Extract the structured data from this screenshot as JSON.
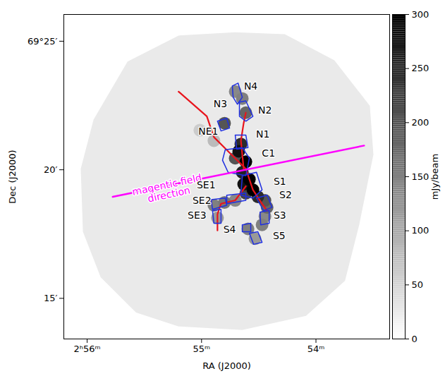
{
  "chart_data": {
    "type": "image",
    "xlabel": "RA (J2000)",
    "ylabel": "Dec (J2000)",
    "xlim": [
      56.204,
      53.356
    ],
    "ylim": [
      13.42,
      26.04
    ],
    "xticks": [
      {
        "value": 56,
        "label": "2ʰ56ᵐ"
      },
      {
        "value": 55,
        "label": "55ᵐ"
      },
      {
        "value": 54,
        "label": "54ᵐ"
      }
    ],
    "yticks": [
      {
        "value": 15,
        "label": "15′"
      },
      {
        "value": 20,
        "label": "20′"
      },
      {
        "value": 25,
        "label": "69°25′"
      }
    ],
    "colorbar": {
      "label": "mJy/beam",
      "lim": [
        0,
        300
      ],
      "ticks": [
        0,
        50,
        100,
        150,
        200,
        250,
        300
      ]
    },
    "coverage": {
      "value": 25,
      "points": [
        [
          55.647,
          24.21
        ],
        [
          55.201,
          25.22
        ],
        [
          54.706,
          25.35
        ],
        [
          54.272,
          25.27
        ],
        [
          53.839,
          24.26
        ],
        [
          53.529,
          22.49
        ],
        [
          53.498,
          20.59
        ],
        [
          53.622,
          17.86
        ],
        [
          53.746,
          15.68
        ],
        [
          54.087,
          14.32
        ],
        [
          54.644,
          13.77
        ],
        [
          55.201,
          13.91
        ],
        [
          55.573,
          14.45
        ],
        [
          55.882,
          15.82
        ],
        [
          56.037,
          17.59
        ],
        [
          56.056,
          20.04
        ],
        [
          55.944,
          21.95
        ]
      ]
    },
    "emission": {
      "points": [
        [
          55.015,
          21.54
        ],
        [
          54.892,
          21.13
        ],
        [
          54.533,
          17.32
        ],
        [
          54.861,
          18.13
        ],
        [
          54.706,
          23.04
        ],
        [
          54.446,
          18.19
        ],
        [
          54.706,
          18.81
        ],
        [
          54.644,
          22.77
        ],
        [
          54.471,
          17.86
        ],
        [
          54.594,
          17.7
        ],
        [
          54.892,
          18.62
        ],
        [
          54.799,
          18.73
        ],
        [
          54.613,
          22.22
        ],
        [
          54.427,
          18.54
        ],
        [
          54.706,
          20.45
        ],
        [
          54.799,
          21.81
        ],
        [
          54.446,
          18.81
        ],
        [
          54.613,
          19.09
        ],
        [
          54.508,
          18.95
        ],
        [
          54.656,
          21.0
        ],
        [
          54.644,
          19.9
        ],
        [
          54.675,
          20.72
        ],
        [
          54.632,
          19.44
        ],
        [
          54.613,
          20.31
        ],
        [
          54.582,
          19.63
        ],
        [
          54.551,
          19.22
        ]
      ],
      "values": [
        60,
        80,
        120,
        120,
        140,
        140,
        140,
        150,
        150,
        150,
        150,
        160,
        180,
        180,
        200,
        200,
        200,
        220,
        250,
        250,
        260,
        280,
        280,
        300,
        300,
        300
      ]
    },
    "contours": {
      "color": "#1f2fe0",
      "polygons": [
        [
          [
            54.731,
            23.26
          ],
          [
            54.681,
            23.37
          ],
          [
            54.644,
            22.82
          ],
          [
            54.687,
            22.55
          ],
          [
            54.724,
            22.82
          ]
        ],
        [
          [
            54.669,
            22.63
          ],
          [
            54.613,
            22.68
          ],
          [
            54.551,
            22.08
          ],
          [
            54.613,
            21.89
          ],
          [
            54.669,
            22.08
          ]
        ],
        [
          [
            54.861,
            21.89
          ],
          [
            54.78,
            22.0
          ],
          [
            54.755,
            21.62
          ],
          [
            54.83,
            21.51
          ]
        ],
        [
          [
            54.706,
            21.35
          ],
          [
            54.613,
            21.35
          ],
          [
            54.594,
            20.86
          ],
          [
            54.693,
            20.8
          ]
        ],
        [
          [
            54.793,
            20.78
          ],
          [
            54.644,
            20.86
          ],
          [
            54.582,
            20.45
          ],
          [
            54.613,
            19.77
          ],
          [
            54.768,
            19.9
          ],
          [
            54.817,
            20.37
          ]
        ],
        [
          [
            54.644,
            19.77
          ],
          [
            54.52,
            19.9
          ],
          [
            54.471,
            19.22
          ],
          [
            54.551,
            18.9
          ],
          [
            54.656,
            19.01
          ]
        ],
        [
          [
            54.52,
            18.9
          ],
          [
            54.427,
            19.01
          ],
          [
            54.384,
            18.54
          ],
          [
            54.458,
            18.41
          ]
        ],
        [
          [
            54.489,
            18.35
          ],
          [
            54.409,
            18.41
          ],
          [
            54.409,
            17.92
          ],
          [
            54.483,
            17.86
          ]
        ],
        [
          [
            54.644,
            17.86
          ],
          [
            54.57,
            17.92
          ],
          [
            54.57,
            17.59
          ],
          [
            54.644,
            17.59
          ]
        ],
        [
          [
            54.582,
            17.53
          ],
          [
            54.508,
            17.59
          ],
          [
            54.471,
            17.18
          ],
          [
            54.545,
            17.1
          ]
        ],
        [
          [
            54.78,
            19.01
          ],
          [
            54.613,
            19.09
          ],
          [
            54.613,
            18.81
          ],
          [
            54.78,
            18.68
          ]
        ],
        [
          [
            54.916,
            18.84
          ],
          [
            54.793,
            18.9
          ],
          [
            54.78,
            18.62
          ],
          [
            54.904,
            18.46
          ]
        ],
        [
          [
            54.904,
            18.41
          ],
          [
            54.83,
            18.46
          ],
          [
            54.83,
            17.92
          ],
          [
            54.892,
            17.92
          ]
        ]
      ]
    },
    "filaments": {
      "color": "#e8141c",
      "lines": [
        [
          [
            55.201,
            23.04
          ],
          [
            54.954,
            22.08
          ],
          [
            54.892,
            21.27
          ],
          [
            54.768,
            20.72
          ],
          [
            54.613,
            20.04
          ]
        ],
        [
          [
            54.632,
            20.04
          ],
          [
            54.656,
            21.13
          ],
          [
            54.632,
            21.81
          ],
          [
            54.613,
            22.22
          ]
        ],
        [
          [
            54.613,
            20.04
          ],
          [
            54.551,
            19.22
          ],
          [
            54.471,
            18.68
          ],
          [
            54.427,
            18.41
          ]
        ],
        [
          [
            54.613,
            19.36
          ],
          [
            54.706,
            18.81
          ],
          [
            54.83,
            18.68
          ],
          [
            54.861,
            18.27
          ],
          [
            54.861,
            17.64
          ]
        ]
      ]
    },
    "labels": [
      {
        "text": "N4",
        "ra": 54.57,
        "dec": 23.23
      },
      {
        "text": "N2",
        "ra": 54.446,
        "dec": 22.3
      },
      {
        "text": "N3",
        "ra": 54.836,
        "dec": 22.55
      },
      {
        "text": "NE1",
        "ra": 54.941,
        "dec": 21.49
      },
      {
        "text": "N1",
        "ra": 54.464,
        "dec": 21.38
      },
      {
        "text": "C1",
        "ra": 54.415,
        "dec": 20.64
      },
      {
        "text": "S1",
        "ra": 54.316,
        "dec": 19.55
      },
      {
        "text": "S2",
        "ra": 54.266,
        "dec": 19.01
      },
      {
        "text": "SE1",
        "ra": 54.96,
        "dec": 19.39
      },
      {
        "text": "SE2",
        "ra": 54.997,
        "dec": 18.81
      },
      {
        "text": "S3",
        "ra": 54.316,
        "dec": 18.22
      },
      {
        "text": "SE3",
        "ra": 55.04,
        "dec": 18.22
      },
      {
        "text": "S4",
        "ra": 54.755,
        "dec": 17.67
      },
      {
        "text": "S5",
        "ra": 54.322,
        "dec": 17.43
      }
    ],
    "magnetic_field": {
      "text": "magentic field\ndirection",
      "color": "#ff00ff",
      "points": [
        [
          55.777,
          18.95
        ],
        [
          53.579,
          20.94
        ]
      ],
      "label_ra": 55.294,
      "label_dec": 19.22
    }
  }
}
